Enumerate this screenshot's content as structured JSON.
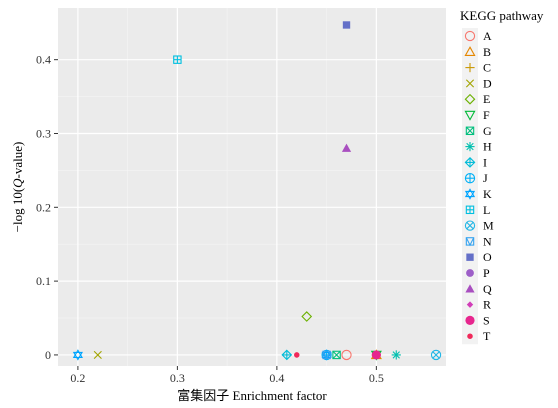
{
  "chart_data": {
    "type": "scatter",
    "title": "",
    "xlabel": "富集因子 Enrichment factor",
    "ylabel_parts": [
      "−log 10(",
      "Q",
      "-value)"
    ],
    "xlim": [
      0.18,
      0.57
    ],
    "ylim": [
      -0.015,
      0.47
    ],
    "xticks": [
      0.2,
      0.3,
      0.4,
      0.5
    ],
    "yticks": [
      0,
      0.1,
      0.2,
      0.3,
      0.4
    ],
    "xtick_labels": [
      "0.2",
      "0.3",
      "0.4",
      "0.5"
    ],
    "ytick_labels": [
      "0",
      "0.1",
      "0.2",
      "0.3",
      "0.4"
    ],
    "grid": true,
    "legend_title": "KEGG pathway",
    "legend_position": "right",
    "series": [
      {
        "name": "A",
        "shape": "circle-open",
        "color": "#F8766D",
        "points": [
          [
            0.47,
            0
          ]
        ]
      },
      {
        "name": "B",
        "shape": "triangle-open",
        "color": "#E58700",
        "points": [
          [
            0.5,
            0
          ]
        ]
      },
      {
        "name": "C",
        "shape": "plus",
        "color": "#C99800",
        "points": [
          [
            0.5,
            0
          ]
        ]
      },
      {
        "name": "D",
        "shape": "cross",
        "color": "#A3A500",
        "points": [
          [
            0.22,
            0
          ]
        ]
      },
      {
        "name": "E",
        "shape": "diamond-open",
        "color": "#6BB100",
        "points": [
          [
            0.43,
            0.052
          ]
        ]
      },
      {
        "name": "F",
        "shape": "triangle-down-open",
        "color": "#00BA38",
        "points": [
          [
            0.5,
            0
          ]
        ]
      },
      {
        "name": "G",
        "shape": "square-cross",
        "color": "#00BF7D",
        "points": [
          [
            0.46,
            0
          ]
        ]
      },
      {
        "name": "H",
        "shape": "asterisk",
        "color": "#00C0AF",
        "points": [
          [
            0.52,
            0
          ]
        ]
      },
      {
        "name": "I",
        "shape": "diamond-plus",
        "color": "#00BCD8",
        "points": [
          [
            0.41,
            0
          ]
        ]
      },
      {
        "name": "J",
        "shape": "circle-plus",
        "color": "#00B0F6",
        "points": [
          [
            0.45,
            0
          ]
        ]
      },
      {
        "name": "K",
        "shape": "star-david",
        "color": "#00A5FF",
        "points": [
          [
            0.2,
            0
          ],
          [
            0.45,
            0
          ]
        ]
      },
      {
        "name": "L",
        "shape": "square-plus",
        "color": "#00C0E0",
        "points": [
          [
            0.3,
            0.4
          ]
        ]
      },
      {
        "name": "M",
        "shape": "square-x-circle",
        "color": "#20B6E6",
        "points": [
          [
            0.56,
            0
          ]
        ]
      },
      {
        "name": "N",
        "shape": "square-triangle",
        "color": "#35A3F0",
        "points": [
          [
            0.45,
            0
          ]
        ]
      },
      {
        "name": "O",
        "shape": "square-filled",
        "color": "#6470C8",
        "points": [
          [
            0.47,
            0.447
          ]
        ]
      },
      {
        "name": "P",
        "shape": "circle-filled",
        "color": "#9D5FC8",
        "points": [
          [
            0.5,
            0
          ]
        ]
      },
      {
        "name": "Q",
        "shape": "triangle-filled",
        "color": "#A94FC0",
        "points": [
          [
            0.47,
            0.28
          ]
        ]
      },
      {
        "name": "R",
        "shape": "diamond-filled",
        "color": "#D13DB8",
        "points": [
          [
            0.5,
            0
          ]
        ]
      },
      {
        "name": "S",
        "shape": "circle-filled-large",
        "color": "#E7268E",
        "points": [
          [
            0.5,
            0
          ]
        ]
      },
      {
        "name": "T",
        "shape": "circle-filled-small",
        "color": "#F0295A",
        "points": [
          [
            0.42,
            0
          ]
        ]
      }
    ]
  }
}
